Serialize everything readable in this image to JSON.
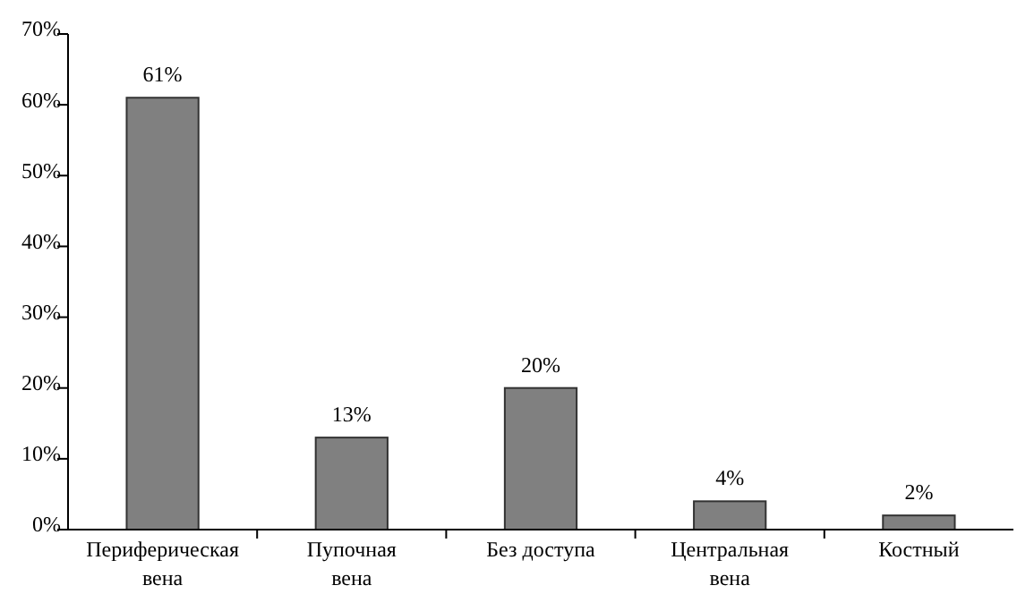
{
  "chart_data": {
    "type": "bar",
    "categories": [
      "Периферическая\nвена",
      "Пупочная\nвена",
      "Без доступа",
      "Центральная\nвена",
      "Костный"
    ],
    "values": [
      61,
      13,
      20,
      4,
      2
    ],
    "color": "#808080",
    "value_labels": [
      "61%",
      "13%",
      "20%",
      "4%",
      "2%"
    ],
    "ylim": [
      0,
      70
    ],
    "yticks": [
      {
        "value": 0,
        "label": "0%"
      },
      {
        "value": 10,
        "label": "10%"
      },
      {
        "value": 20,
        "label": "20%"
      },
      {
        "value": 30,
        "label": "30%"
      },
      {
        "value": 40,
        "label": "40%"
      },
      {
        "value": 50,
        "label": "50%"
      },
      {
        "value": 60,
        "label": "60%"
      },
      {
        "value": 70,
        "label": "70%"
      }
    ],
    "grid": false
  }
}
